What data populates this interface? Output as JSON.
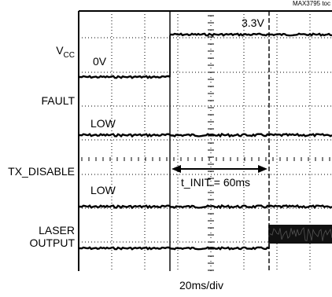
{
  "figure_tag": "MAX3795 toc",
  "time_base": "20ms/div",
  "chart_data": {
    "type": "line",
    "title": "",
    "xlabel": "20ms/div",
    "ylabel": "",
    "time_per_div_ms": 20,
    "grid": true,
    "transition_time_ms": 0,
    "traces": [
      {
        "name": "V_CC",
        "display": "V",
        "subscript": "CC",
        "levels": [
          {
            "label": "0V",
            "value_v": 0
          },
          {
            "label": "3.3V",
            "value_v": 3.3
          }
        ],
        "step_at_ms": 0
      },
      {
        "name": "FAULT",
        "display": "FAULT",
        "levels": [
          {
            "label": "LOW",
            "state": "low"
          }
        ],
        "steps": []
      },
      {
        "name": "TX_DISABLE",
        "display": "TX_DISABLE",
        "levels": [
          {
            "label": "LOW",
            "state": "low"
          }
        ],
        "steps": []
      },
      {
        "name": "LASER OUTPUT",
        "display": "LASER\nOUTPUT",
        "levels": [
          {
            "label": "",
            "state": "off"
          },
          {
            "label": "",
            "state": "on"
          }
        ],
        "step_at_ms": 60
      }
    ],
    "annotations": [
      {
        "text": "t_INIT = 60ms",
        "from_ms": 0,
        "to_ms": 60
      }
    ]
  }
}
